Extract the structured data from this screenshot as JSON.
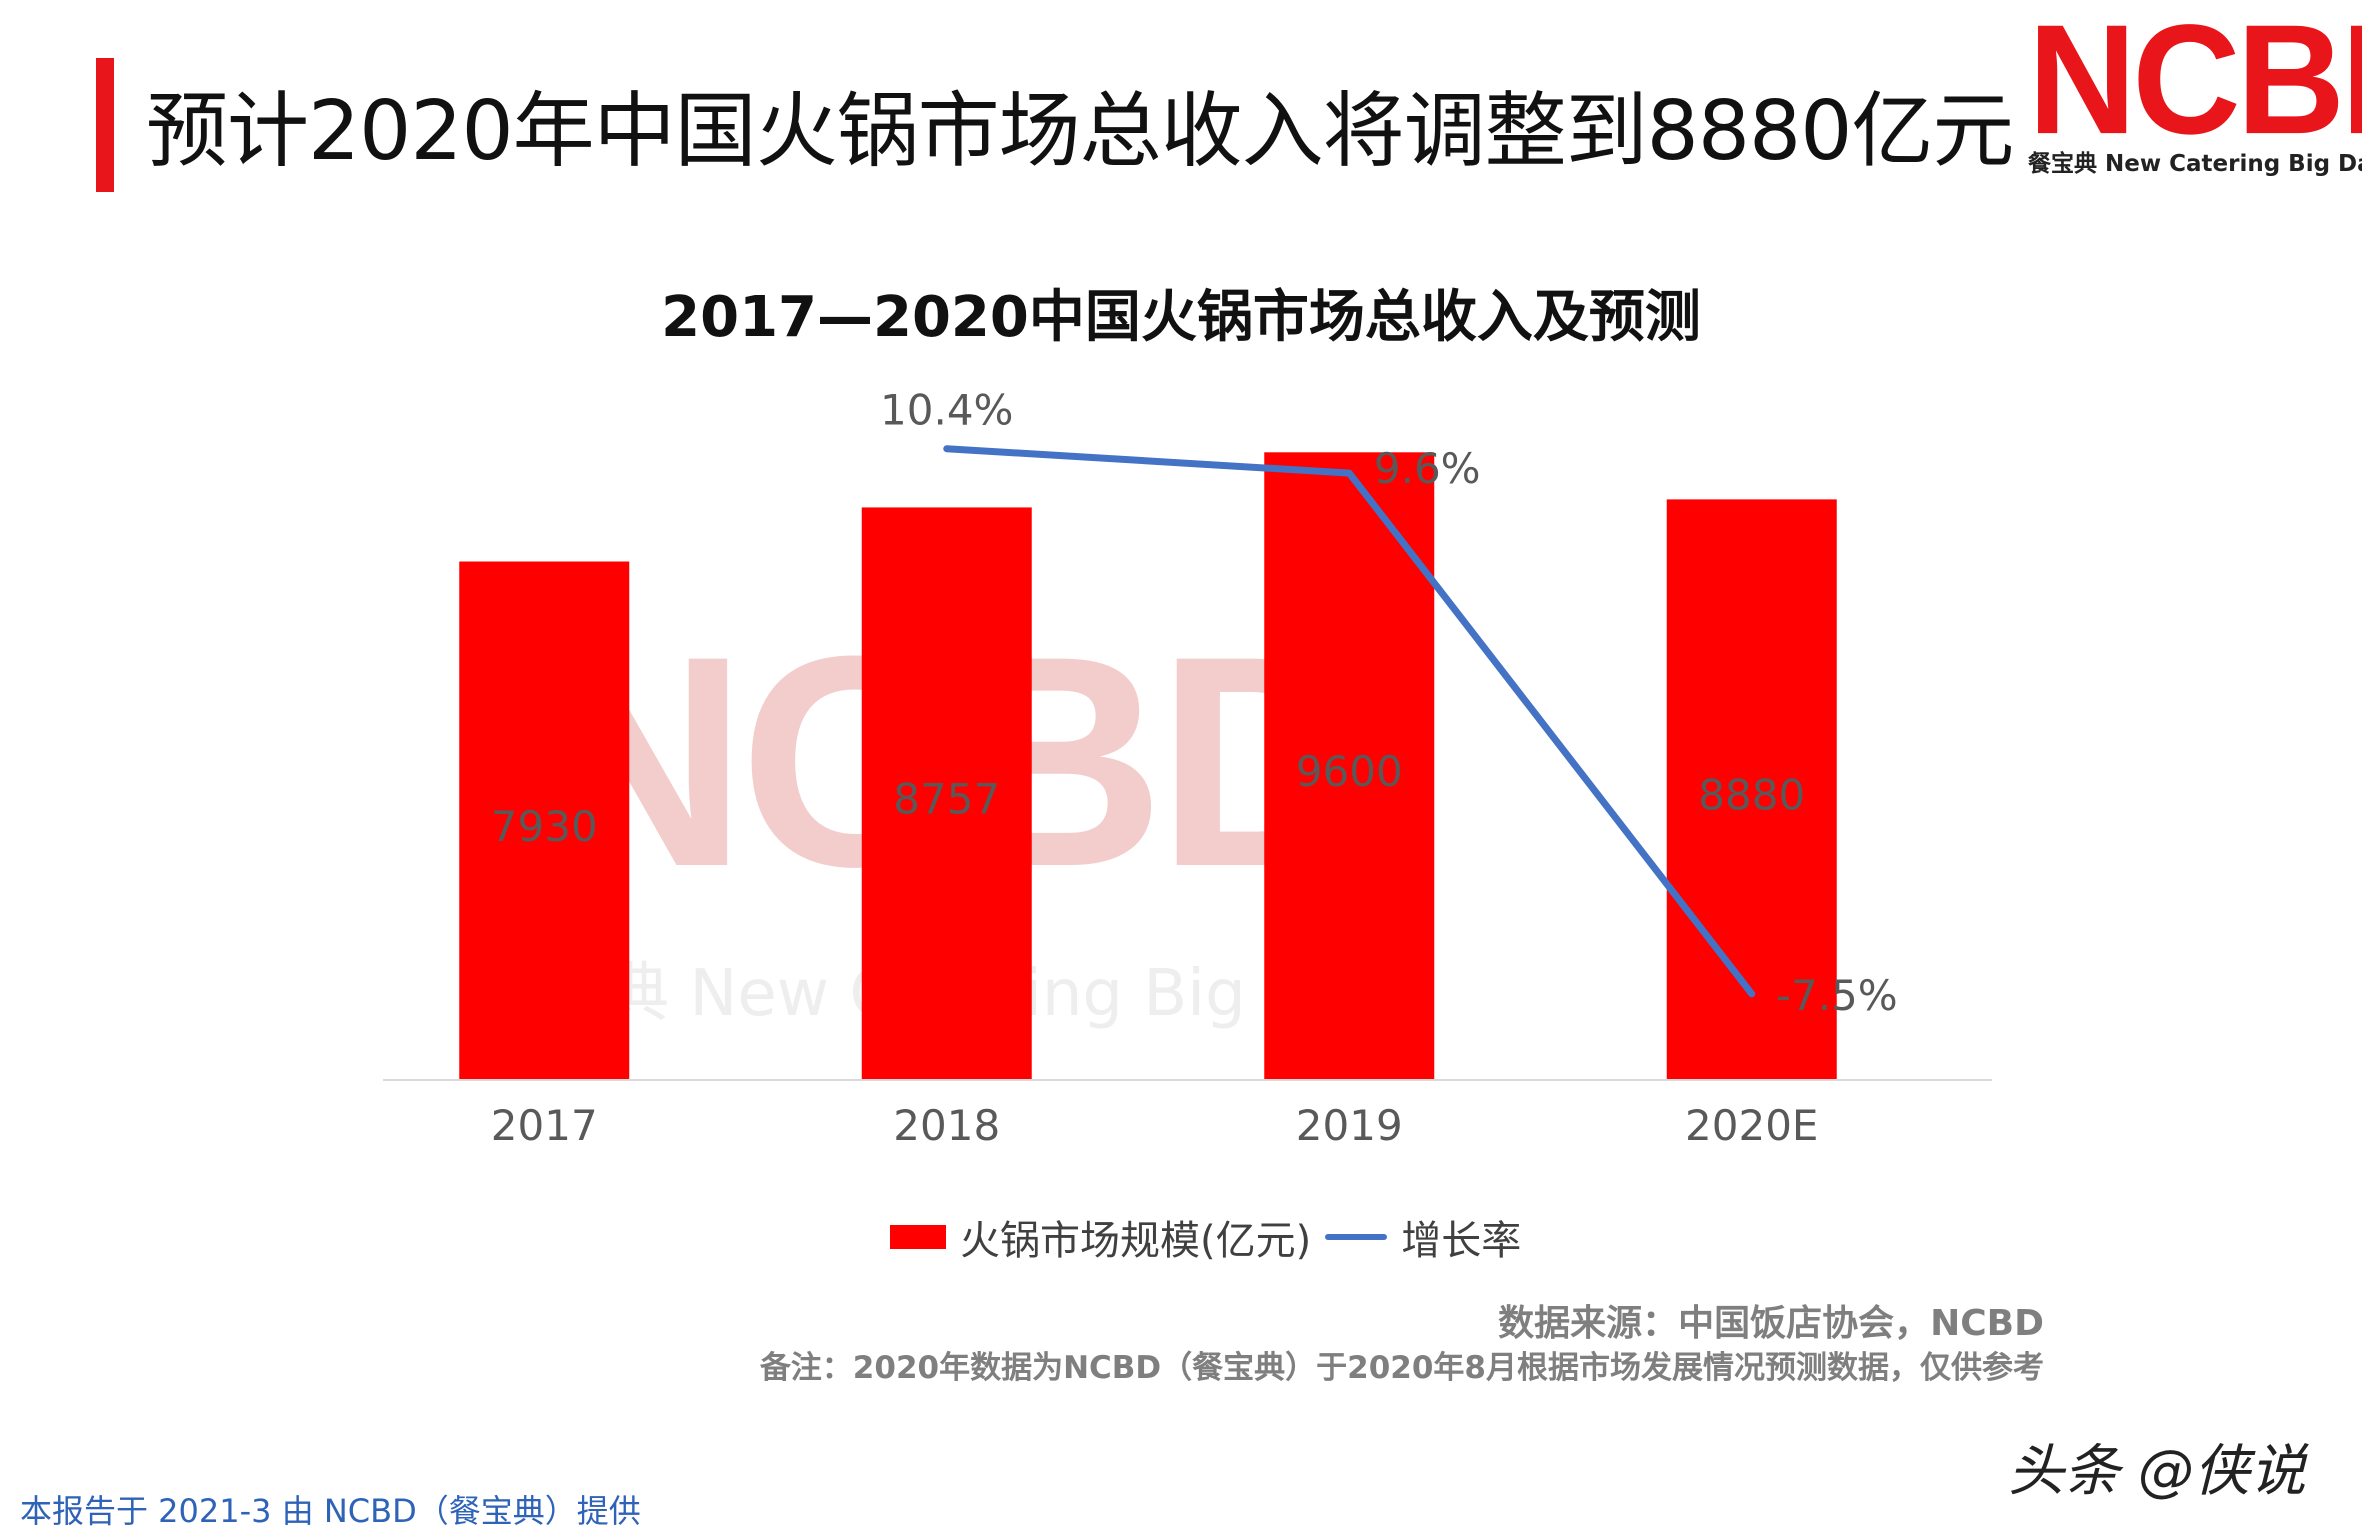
{
  "header": {
    "title": "预计2020年中国火锅市场总收入将调整到8880亿元",
    "logo_text": "NCBD",
    "logo_sub": "餐宝典 New Catering Big Data"
  },
  "chart_data": {
    "type": "bar",
    "title": "2017—2020中国火锅市场总收入及预测",
    "categories": [
      "2017",
      "2018",
      "2019",
      "2020E"
    ],
    "series": [
      {
        "name": "火锅市场规模(亿元)",
        "type": "bar",
        "values": [
          7930,
          8757,
          9600,
          8880
        ],
        "labels": [
          "7930",
          "8757",
          "9600",
          "8880"
        ]
      },
      {
        "name": "增长率",
        "type": "line",
        "x": [
          "2018",
          "2019",
          "2020E"
        ],
        "values": [
          10.4,
          9.6,
          -7.5
        ],
        "labels": [
          "10.4%",
          "9.6%",
          "-7.5%"
        ]
      }
    ],
    "watermark": [
      "NCBD",
      "餐宝典 New Catering Big Data"
    ],
    "legend_position": "bottom",
    "grid": false,
    "colors": {
      "bar": "#ff0000",
      "line": "#4472c4"
    }
  },
  "source": "数据来源：中国饭店协会，NCBD",
  "note": "备注：2020年数据为NCBD（餐宝典）于2020年8月根据市场发展情况预测数据，仅供参考",
  "footer": "本报告于 2021-3 由 NCBD（餐宝典）提供",
  "corner_watermark": "头条 @侠说"
}
